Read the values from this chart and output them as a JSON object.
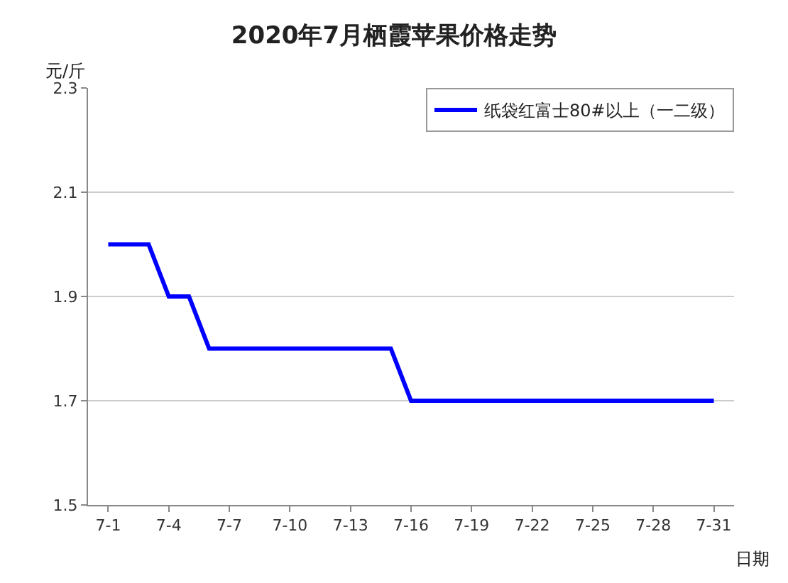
{
  "chart_data": {
    "type": "line",
    "title": "2020年7月栖霞苹果价格走势",
    "ylabel": "元/斤",
    "xlabel": "日期",
    "categories": [
      "7-1",
      null,
      null,
      "7-4",
      null,
      null,
      "7-7",
      null,
      null,
      "7-10",
      null,
      null,
      "7-13",
      null,
      null,
      "7-16",
      null,
      null,
      "7-19",
      null,
      null,
      "7-22",
      null,
      null,
      "7-25",
      null,
      null,
      "7-28",
      null,
      null,
      "7-31"
    ],
    "series": [
      {
        "name": "纸袋红富士80#以上（一二级）",
        "color": "#0000ff",
        "values": [
          2.0,
          2.0,
          2.0,
          1.9,
          1.9,
          1.8,
          1.8,
          1.8,
          1.8,
          1.8,
          1.8,
          1.8,
          1.8,
          1.8,
          1.8,
          1.7,
          1.7,
          1.7,
          1.7,
          1.7,
          1.7,
          1.7,
          1.7,
          1.7,
          1.7,
          1.7,
          1.7,
          1.7,
          1.7,
          1.7,
          1.7
        ]
      }
    ],
    "ylim": [
      1.5,
      2.3
    ],
    "yticks": [
      1.5,
      1.7,
      1.9,
      2.1,
      2.3
    ],
    "grid": "y",
    "legend": "top right",
    "marker": "none",
    "line_style": "solid"
  }
}
